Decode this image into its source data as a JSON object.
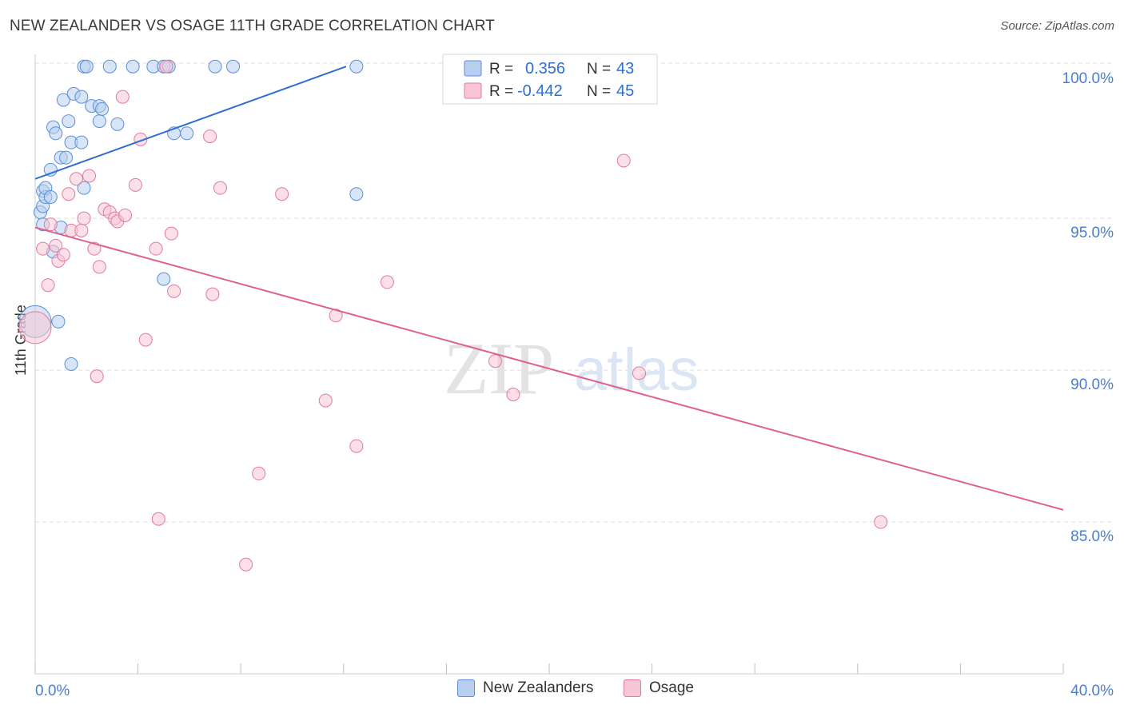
{
  "title": "NEW ZEALANDER VS OSAGE 11TH GRADE CORRELATION CHART",
  "source": "Source: ZipAtlas.com",
  "watermark": {
    "zip": "ZIP",
    "atlas": "atlas"
  },
  "colors": {
    "blue": "#5b8fd6",
    "blue_fill": "#b8cff0",
    "blue_line": "#2e6fd0",
    "pink": "#e07a9e",
    "pink_fill": "#f7c6d6",
    "pink_line": "#e0608e",
    "axis_text": "#4a7ecf",
    "grid": "#dddddd"
  },
  "legend_top": {
    "rows": [
      {
        "r_label": "R =",
        "r_value": "0.356",
        "n_label": "N =",
        "n_value": "43"
      },
      {
        "r_label": "R =",
        "r_value": "-0.442",
        "n_label": "N =",
        "n_value": "45"
      }
    ]
  },
  "legend_bottom": {
    "series1": "New Zealanders",
    "series2": "Osage"
  },
  "chart_data": {
    "type": "scatter",
    "title": "NEW ZEALANDER VS OSAGE 11TH GRADE CORRELATION CHART",
    "xlabel": "",
    "ylabel": "11th Grade",
    "xlim": [
      0,
      40
    ],
    "ylim": [
      80.0,
      100.4
    ],
    "x_tick_labels": [
      "0.0%",
      "40.0%"
    ],
    "y_ticks": [
      85,
      90,
      95,
      100
    ],
    "y_tick_labels": [
      "85.0%",
      "90.0%",
      "95.0%",
      "100.0%"
    ],
    "grid": true,
    "series": [
      {
        "name": "New Zealanders",
        "r": 0.356,
        "n": 43,
        "trend": {
          "x": [
            0.0,
            12.1
          ],
          "y": [
            96.3,
            100.0
          ]
        },
        "points": [
          [
            0.2,
            95.2
          ],
          [
            0.3,
            94.8
          ],
          [
            0.3,
            95.4
          ],
          [
            0.3,
            95.9
          ],
          [
            0.4,
            95.7
          ],
          [
            0.4,
            96.0
          ],
          [
            0.6,
            95.7
          ],
          [
            0.6,
            96.6
          ],
          [
            0.7,
            93.9
          ],
          [
            0.7,
            98.0
          ],
          [
            0.8,
            97.8
          ],
          [
            0.9,
            91.6
          ],
          [
            1.0,
            97.0
          ],
          [
            1.0,
            94.7
          ],
          [
            1.1,
            98.9
          ],
          [
            1.2,
            97.0
          ],
          [
            1.3,
            98.2
          ],
          [
            1.4,
            97.5
          ],
          [
            1.4,
            90.2
          ],
          [
            1.5,
            99.1
          ],
          [
            1.8,
            97.5
          ],
          [
            1.8,
            99.0
          ],
          [
            1.9,
            96.0
          ],
          [
            1.9,
            100.0
          ],
          [
            2.0,
            100.0
          ],
          [
            2.2,
            98.7
          ],
          [
            2.5,
            98.7
          ],
          [
            2.5,
            98.2
          ],
          [
            2.6,
            98.6
          ],
          [
            2.9,
            100.0
          ],
          [
            3.2,
            98.1
          ],
          [
            3.8,
            100.0
          ],
          [
            4.6,
            100.0
          ],
          [
            5.0,
            93.0
          ],
          [
            5.0,
            100.0
          ],
          [
            5.2,
            100.0
          ],
          [
            5.4,
            97.8
          ],
          [
            5.9,
            97.8
          ],
          [
            7.0,
            100.0
          ],
          [
            7.7,
            100.0
          ],
          [
            12.5,
            100.0
          ],
          [
            12.5,
            95.8
          ],
          [
            0.0,
            91.6
          ]
        ]
      },
      {
        "name": "Osage",
        "r": -0.442,
        "n": 45,
        "trend": {
          "x": [
            0.0,
            40.0
          ],
          "y": [
            94.7,
            85.4
          ]
        },
        "points": [
          [
            0.0,
            91.4
          ],
          [
            0.3,
            94.0
          ],
          [
            0.5,
            92.8
          ],
          [
            0.6,
            94.8
          ],
          [
            0.8,
            94.1
          ],
          [
            0.9,
            93.6
          ],
          [
            1.1,
            93.8
          ],
          [
            1.3,
            95.8
          ],
          [
            1.4,
            94.6
          ],
          [
            1.6,
            96.3
          ],
          [
            1.8,
            94.6
          ],
          [
            1.9,
            95.0
          ],
          [
            2.1,
            96.4
          ],
          [
            2.3,
            94.0
          ],
          [
            2.4,
            89.8
          ],
          [
            2.5,
            93.4
          ],
          [
            2.7,
            95.3
          ],
          [
            2.9,
            95.2
          ],
          [
            3.1,
            95.0
          ],
          [
            3.2,
            94.9
          ],
          [
            3.4,
            99.0
          ],
          [
            3.5,
            95.1
          ],
          [
            3.9,
            96.1
          ],
          [
            4.1,
            97.6
          ],
          [
            4.3,
            91.0
          ],
          [
            4.7,
            94.0
          ],
          [
            4.8,
            85.1
          ],
          [
            5.1,
            100.0
          ],
          [
            5.3,
            94.5
          ],
          [
            5.4,
            92.6
          ],
          [
            6.8,
            97.7
          ],
          [
            6.9,
            92.5
          ],
          [
            7.2,
            96.0
          ],
          [
            8.2,
            83.6
          ],
          [
            8.7,
            86.6
          ],
          [
            9.6,
            95.8
          ],
          [
            11.3,
            89.0
          ],
          [
            11.7,
            91.8
          ],
          [
            12.5,
            87.5
          ],
          [
            13.7,
            92.9
          ],
          [
            17.9,
            90.3
          ],
          [
            18.6,
            89.2
          ],
          [
            22.9,
            96.9
          ],
          [
            23.5,
            89.9
          ],
          [
            32.9,
            85.0
          ]
        ]
      }
    ]
  }
}
